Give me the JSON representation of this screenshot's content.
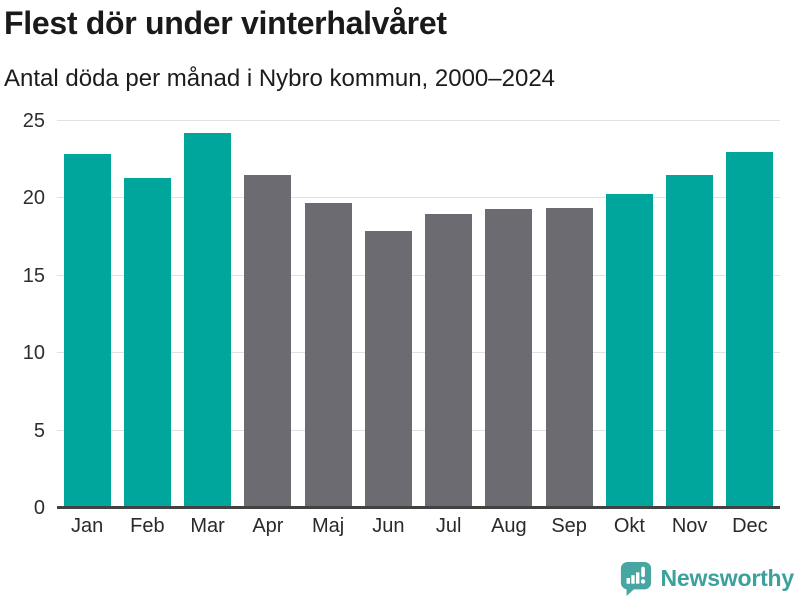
{
  "title": "Flest dör under vinterhalvåret",
  "subtitle": "Antal döda per månad i Nybro kommun, 2000–2024",
  "chart_data": {
    "type": "bar",
    "title": "Flest dör under vinterhalvåret",
    "subtitle": "Antal döda per månad i Nybro kommun, 2000–2024",
    "categories": [
      "Jan",
      "Feb",
      "Mar",
      "Apr",
      "Maj",
      "Jun",
      "Jul",
      "Aug",
      "Sep",
      "Okt",
      "Nov",
      "Dec"
    ],
    "values": [
      22.9,
      21.3,
      24.2,
      21.5,
      19.7,
      17.9,
      19.0,
      19.3,
      19.4,
      20.3,
      21.5,
      23.0
    ],
    "bar_seasons": [
      "winter",
      "winter",
      "winter",
      "summer",
      "summer",
      "summer",
      "summer",
      "summer",
      "summer",
      "winter",
      "winter",
      "winter"
    ],
    "palette": {
      "winter": "#00a59b",
      "summer": "#6c6b72"
    },
    "xlabel": "",
    "ylabel": "",
    "ylim": [
      0,
      25
    ],
    "yticks": [
      0,
      5,
      10,
      15,
      20,
      25
    ],
    "grid": "horizontal",
    "legend": "none"
  },
  "branding": {
    "name": "Newsworthy",
    "text_color": "#3ba19c",
    "icon_color": "#47a6a1"
  }
}
